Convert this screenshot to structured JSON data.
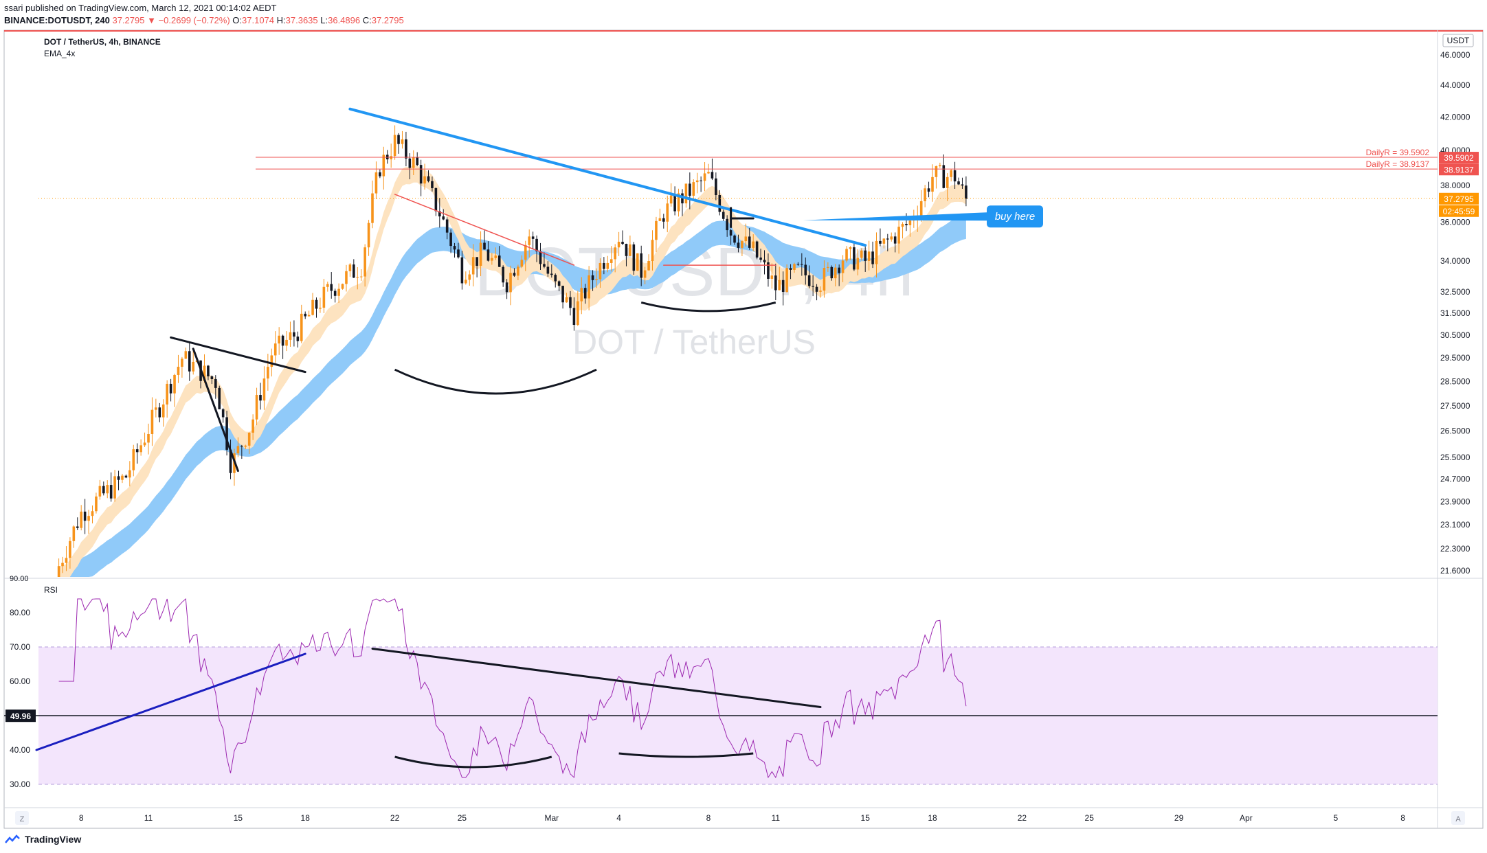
{
  "header": {
    "publisher_line": "ssari published on TradingView.com, March 12, 2021 00:14:02 AEDT",
    "symbol": "BINANCE:DOTUSDT, 240",
    "change": "37.2795 ▼ −0.2699 (−0.72%)",
    "ohlc_labels": [
      "O:",
      "H:",
      "L:",
      "C:"
    ],
    "ohlc_values": [
      "37.1074",
      "37.3635",
      "36.4896",
      "37.2795"
    ]
  },
  "legend": {
    "title": "DOT / TetherUS, 4h, BINANCE",
    "indicator": "EMA_4x"
  },
  "watermark": {
    "big": "DOTUSDT, 4h",
    "small": "DOT / TetherUS"
  },
  "currency": "USDT",
  "rsi_label": "RSI",
  "footer": {
    "brand": "TradingView"
  },
  "axis_buttons": {
    "left": "Z",
    "right": "A"
  },
  "colors": {
    "bull": "#f7931a",
    "bear": "#131722",
    "ema_fast": "#fde3c0",
    "ema_slow": "#90caf9",
    "trend_blue": "#2196f3",
    "resistance": "#ef5350",
    "rsi_line": "#9c27b0",
    "rsi_band": "#f3e5fc"
  },
  "chart_data": {
    "type": "candlestick",
    "price_scale": {
      "ticks": [
        "46.0000",
        "44.0000",
        "42.0000",
        "40.0000",
        "38.0000",
        "36.0000",
        "34.0000",
        "32.5000",
        "31.5000",
        "30.5000",
        "29.5000",
        "28.5000",
        "27.5000",
        "26.5000",
        "25.5000",
        "24.7000",
        "23.9000",
        "23.1000",
        "22.3000",
        "21.6000"
      ],
      "tick_values": [
        46,
        44,
        42,
        40,
        38,
        36,
        34,
        32.5,
        31.5,
        30.5,
        29.5,
        28.5,
        27.5,
        26.5,
        25.5,
        24.7,
        23.9,
        23.1,
        22.3,
        21.6
      ],
      "scale": "log",
      "range": [
        21.4,
        47.7
      ]
    },
    "time_axis": {
      "labels": [
        "8",
        "11",
        "15",
        "18",
        "22",
        "25",
        "Mar",
        "4",
        "8",
        "11",
        "15",
        "18",
        "22",
        "25",
        "29",
        "Apr",
        "5",
        "8"
      ],
      "label_dates": [
        "2021-02-08",
        "2021-02-11",
        "2021-02-15",
        "2021-02-18",
        "2021-02-22",
        "2021-02-25",
        "2021-03-01",
        "2021-03-04",
        "2021-03-08",
        "2021-03-11",
        "2021-03-15",
        "2021-03-18",
        "2021-03-22",
        "2021-03-25",
        "2021-03-29",
        "2021-04-01",
        "2021-04-05",
        "2021-04-08"
      ]
    },
    "price_labels": [
      {
        "text": "39.5902",
        "color": "#ef5350"
      },
      {
        "text": "38.9137",
        "color": "#ef5350"
      },
      {
        "text": "37.2795",
        "color": "#ff9800"
      },
      {
        "text": "02:45:59",
        "color": "#ff9800"
      }
    ],
    "last_price": 37.2795,
    "levels": [
      {
        "label": "DailyR = 39.5902",
        "value": 39.5902
      },
      {
        "label": "DailyR = 38.9137",
        "value": 38.9137
      }
    ],
    "annotations": [
      {
        "text": "buy here",
        "date": "2021-03-12",
        "price": 36.3
      }
    ],
    "rsi": {
      "ticks": [
        "80.00",
        "70.00",
        "60.00",
        "40.00",
        "30.00"
      ],
      "tick_values": [
        80,
        70,
        60,
        40,
        30
      ],
      "top_tick": "90.00",
      "current": "49.96",
      "current_value": 49.96,
      "band": [
        30,
        70
      ],
      "range": [
        26,
        90
      ]
    }
  }
}
